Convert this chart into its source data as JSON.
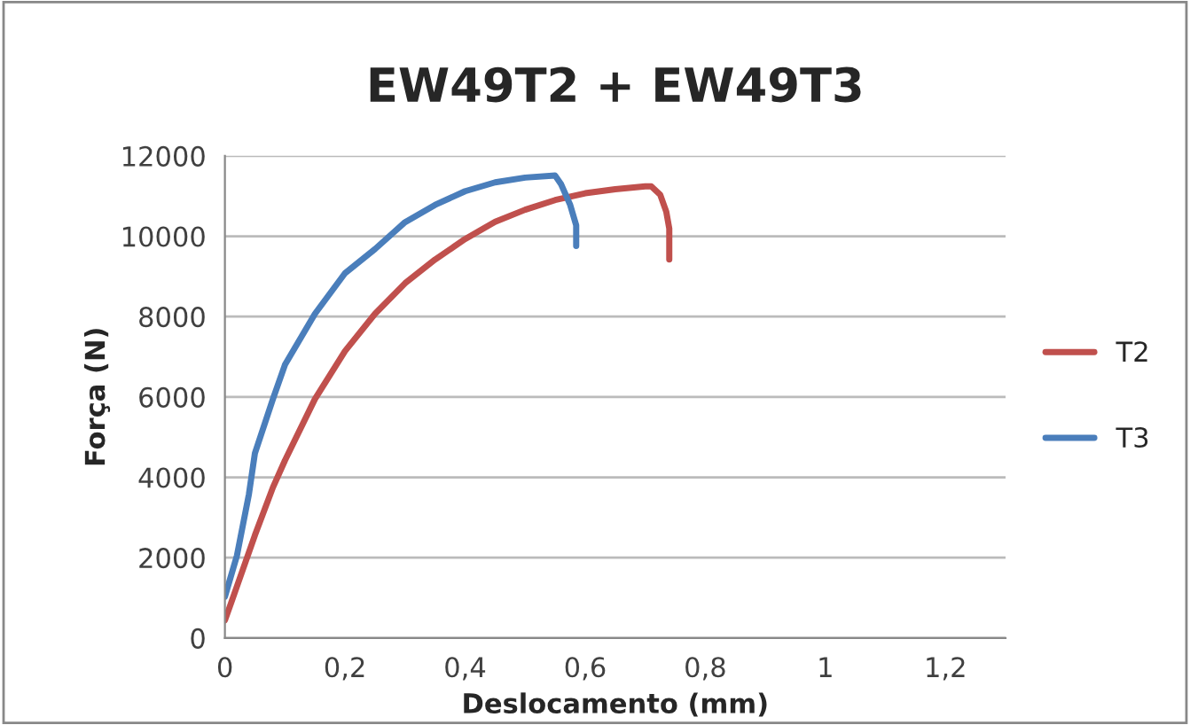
{
  "chart_data": {
    "type": "line",
    "title": "EW49T2 + EW49T3",
    "xlabel": "Deslocamento (mm)",
    "ylabel": "Força (N)",
    "xlim": [
      0,
      1.3
    ],
    "xticks": [
      {
        "value": 0,
        "label": "0"
      },
      {
        "value": 0.2,
        "label": "0,2"
      },
      {
        "value": 0.4,
        "label": "0,4"
      },
      {
        "value": 0.6,
        "label": "0,6"
      },
      {
        "value": 0.8,
        "label": "0,8"
      },
      {
        "value": 1,
        "label": "1"
      },
      {
        "value": 1.2,
        "label": "1,2"
      }
    ],
    "ylim": [
      0,
      12000
    ],
    "yticks": [
      0,
      2000,
      4000,
      6000,
      8000,
      10000,
      12000
    ],
    "grid": "y",
    "legend": "right",
    "marker": "none",
    "line_style": "solid",
    "series": [
      {
        "name": "T2",
        "color": "#c0504d",
        "x": [
          0,
          0.01,
          0.03,
          0.05,
          0.08,
          0.1,
          0.15,
          0.2,
          0.25,
          0.3,
          0.35,
          0.4,
          0.45,
          0.5,
          0.55,
          0.6,
          0.65,
          0.7,
          0.71,
          0.725,
          0.735,
          0.74,
          0.74
        ],
        "values": [
          440,
          860,
          1710,
          2560,
          3750,
          4420,
          5950,
          7140,
          8070,
          8830,
          9420,
          9930,
          10360,
          10660,
          10900,
          11070,
          11170,
          11240,
          11240,
          11030,
          10610,
          10190,
          9420
        ]
      },
      {
        "name": "T3",
        "color": "#4a7ebb",
        "x": [
          0,
          0.02,
          0.04,
          0.05,
          0.08,
          0.1,
          0.15,
          0.2,
          0.25,
          0.3,
          0.35,
          0.4,
          0.45,
          0.5,
          0.55,
          0.56,
          0.575,
          0.585,
          0.585
        ],
        "values": [
          1030,
          2050,
          3580,
          4600,
          5950,
          6800,
          8070,
          9080,
          9680,
          10350,
          10780,
          11120,
          11340,
          11460,
          11510,
          11290,
          10780,
          10270,
          9760
        ]
      }
    ]
  }
}
